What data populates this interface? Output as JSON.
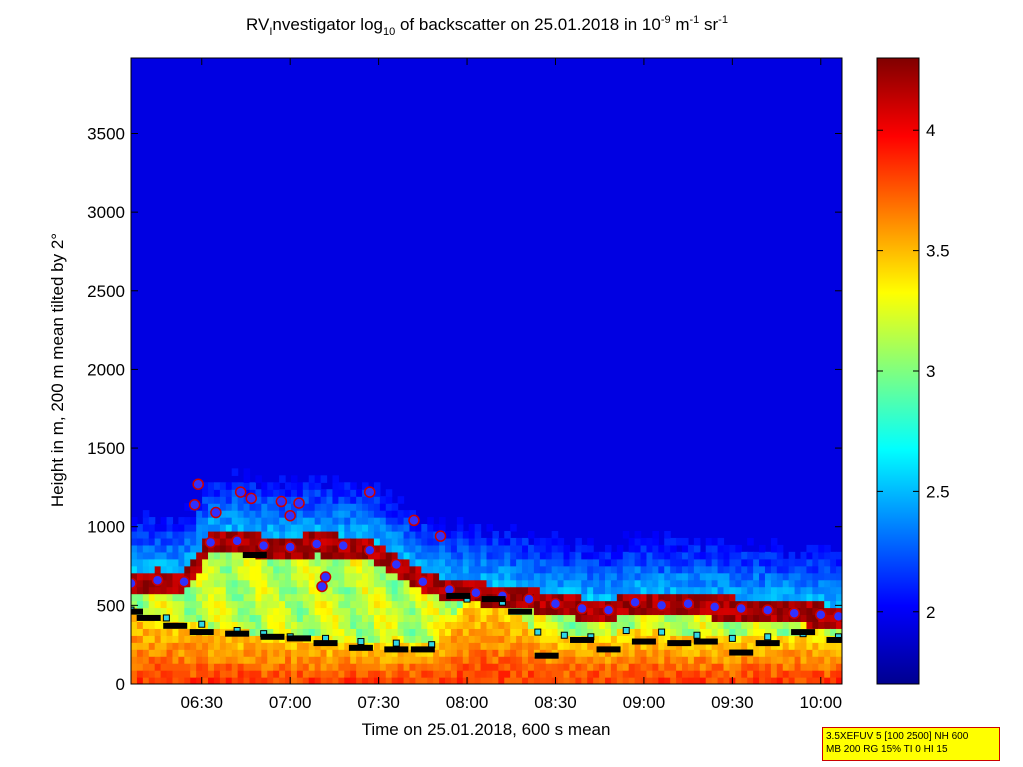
{
  "chart_data": {
    "type": "heatmap",
    "title": {
      "prefix": "RV",
      "prefix_sub": "I",
      "part1": "nvestigator log",
      "part1_sub": "10",
      "part2": " of backscatter on 25.01.2018 in 10",
      "exp1": "-9",
      "part3": " m",
      "exp2": "-1",
      "part4": " sr",
      "exp3": "-1"
    },
    "xlabel": "Time on 25.01.2018, 600 s mean",
    "ylabel": "Height in m, 200 m mean tilted by 2°",
    "x_ticks": [
      "06:30",
      "07:00",
      "07:30",
      "08:00",
      "08:30",
      "09:00",
      "09:30",
      "10:00"
    ],
    "x_tick_hours": [
      6.5,
      7.0,
      7.5,
      8.0,
      8.5,
      9.0,
      9.5,
      10.0
    ],
    "xlim_hours": [
      6.1,
      10.12
    ],
    "y_ticks": [
      0,
      500,
      1000,
      1500,
      2000,
      2500,
      3000,
      3500
    ],
    "ylim": [
      0,
      3980
    ],
    "colorbar": {
      "ticks": [
        "2",
        "2.5",
        "3",
        "3.5",
        "4"
      ],
      "tick_values": [
        2,
        2.5,
        3,
        3.5,
        4
      ],
      "range": [
        1.7,
        4.3
      ],
      "colormap": "jet"
    },
    "series": {
      "cloud_top_height_m": [
        [
          6.1,
          640
        ],
        [
          6.25,
          660
        ],
        [
          6.4,
          650
        ],
        [
          6.55,
          900
        ],
        [
          6.7,
          910
        ],
        [
          6.85,
          880
        ],
        [
          7.0,
          870
        ],
        [
          7.15,
          890
        ],
        [
          7.3,
          880
        ],
        [
          7.45,
          850
        ],
        [
          7.6,
          760
        ],
        [
          7.75,
          650
        ],
        [
          7.9,
          600
        ],
        [
          8.05,
          580
        ],
        [
          8.2,
          560
        ],
        [
          8.35,
          540
        ],
        [
          8.5,
          510
        ],
        [
          8.65,
          480
        ],
        [
          8.8,
          470
        ],
        [
          8.95,
          520
        ],
        [
          9.1,
          500
        ],
        [
          9.25,
          510
        ],
        [
          9.4,
          490
        ],
        [
          9.55,
          480
        ],
        [
          9.7,
          470
        ],
        [
          9.85,
          450
        ],
        [
          10.0,
          440
        ],
        [
          10.1,
          430
        ]
      ],
      "secondary_layer_height_m": [
        [
          6.1,
          470
        ],
        [
          6.3,
          420
        ],
        [
          6.5,
          380
        ],
        [
          6.7,
          340
        ],
        [
          6.85,
          320
        ],
        [
          7.0,
          300
        ],
        [
          7.2,
          290
        ],
        [
          7.4,
          270
        ],
        [
          7.6,
          260
        ],
        [
          7.8,
          250
        ],
        [
          8.0,
          540
        ],
        [
          8.2,
          520
        ],
        [
          8.4,
          330
        ],
        [
          8.55,
          310
        ],
        [
          8.7,
          300
        ],
        [
          8.9,
          340
        ],
        [
          9.1,
          330
        ],
        [
          9.3,
          310
        ],
        [
          9.5,
          290
        ],
        [
          9.7,
          300
        ],
        [
          9.9,
          320
        ],
        [
          10.1,
          300
        ]
      ],
      "isolated_detections_m": [
        [
          6.48,
          1270
        ],
        [
          6.46,
          1140
        ],
        [
          6.58,
          1090
        ],
        [
          6.72,
          1220
        ],
        [
          6.78,
          1180
        ],
        [
          6.95,
          1160
        ],
        [
          7.05,
          1150
        ],
        [
          7.0,
          1070
        ],
        [
          7.45,
          1220
        ],
        [
          7.7,
          1040
        ],
        [
          7.85,
          940
        ],
        [
          7.2,
          680
        ],
        [
          7.18,
          620
        ]
      ],
      "boundary_layer_height_m": [
        [
          6.1,
          460
        ],
        [
          6.2,
          420
        ],
        [
          6.35,
          370
        ],
        [
          6.5,
          330
        ],
        [
          6.7,
          320
        ],
        [
          6.8,
          820
        ],
        [
          6.9,
          300
        ],
        [
          7.05,
          290
        ],
        [
          7.2,
          260
        ],
        [
          7.4,
          230
        ],
        [
          7.6,
          220
        ],
        [
          7.75,
          220
        ],
        [
          7.95,
          560
        ],
        [
          8.15,
          540
        ],
        [
          8.3,
          460
        ],
        [
          8.45,
          180
        ],
        [
          8.65,
          280
        ],
        [
          8.8,
          220
        ],
        [
          9.0,
          270
        ],
        [
          9.2,
          260
        ],
        [
          9.35,
          270
        ],
        [
          9.55,
          200
        ],
        [
          9.7,
          260
        ],
        [
          9.9,
          330
        ],
        [
          10.1,
          280
        ]
      ]
    },
    "grid": false,
    "legend": "none"
  },
  "info_box": {
    "line1": "3.5XEFUV 5 [100 2500] NH 600",
    "line2": "MB 200 RG 15% TI 0 HI 15"
  },
  "colors": {
    "background": "#ffffff",
    "info_box_fill": "#ffff00",
    "info_box_border": "#cc0000",
    "top_marker_fill": "#3030ff",
    "top_marker_edge": "#cc0000",
    "cloud_base_marker_fill": "#30d8e8",
    "boundary_marker_fill": "#000000"
  }
}
